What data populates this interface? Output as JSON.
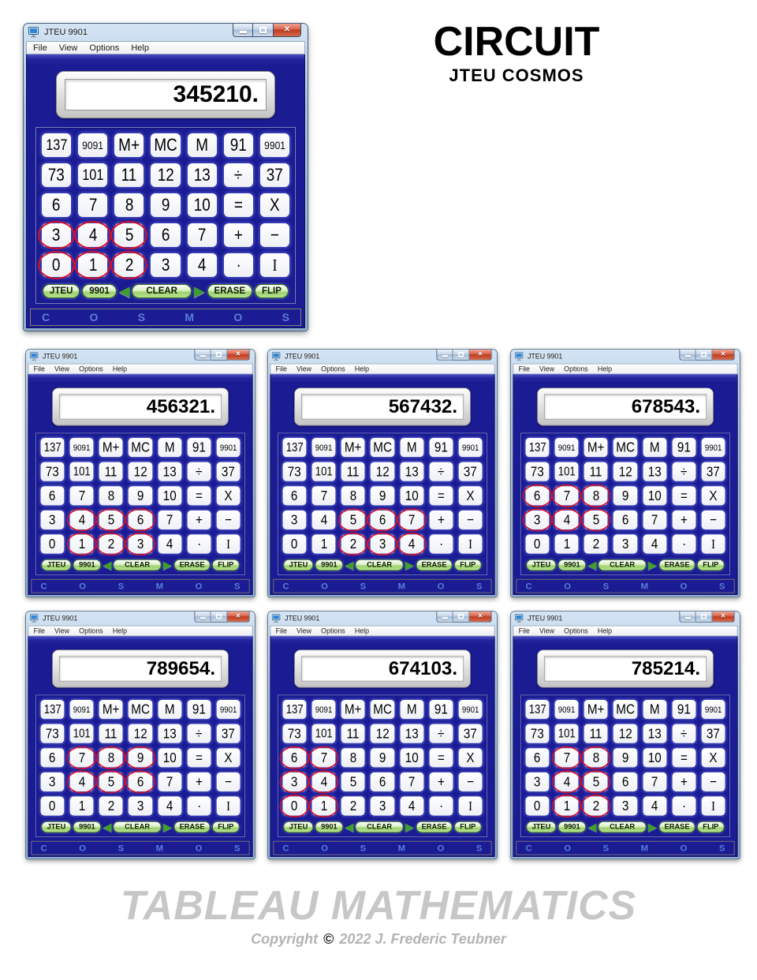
{
  "page": {
    "header": {
      "title": "CIRCUIT",
      "subtitle": "JTEU COSMOS"
    },
    "footer": {
      "title": "TABLEAU MATHEMATICS",
      "copyright_prefix": "Copyright",
      "copyright_symbol": "©",
      "copyright_suffix": "2022  J. Frederic Teubner"
    }
  },
  "calculator_template": {
    "window_title": "JTEU 9901",
    "window_controls": [
      {
        "name": "minimize"
      },
      {
        "name": "maximize"
      },
      {
        "name": "close",
        "glyph": "✕"
      }
    ],
    "menu_items": [
      "File",
      "View",
      "Options",
      "Help"
    ],
    "keypad_rows": [
      [
        "137",
        "9091",
        "M+",
        "MC",
        "M",
        "91",
        "9901"
      ],
      [
        "73",
        "101",
        "11",
        "12",
        "13",
        "÷",
        "37"
      ],
      [
        "6",
        "7",
        "8",
        "9",
        "10",
        "=",
        "X"
      ],
      [
        "3",
        "4",
        "5",
        "6",
        "7",
        "+",
        "−"
      ],
      [
        "0",
        "1",
        "2",
        "3",
        "4",
        "·",
        "I"
      ]
    ],
    "footer_controls": [
      {
        "type": "pill",
        "label": "JTEU"
      },
      {
        "type": "pill",
        "label": "9901"
      },
      {
        "type": "arrow",
        "direction": "left",
        "glyph": "◀"
      },
      {
        "type": "pill",
        "label": "CLEAR"
      },
      {
        "type": "arrow",
        "direction": "right",
        "glyph": "▶"
      },
      {
        "type": "pill",
        "label": "ERASE"
      },
      {
        "type": "pill",
        "label": "FLIP"
      }
    ],
    "bottom_letters": [
      "C",
      "O",
      "S",
      "M",
      "O",
      "S"
    ]
  },
  "calculators": [
    {
      "id": 1,
      "size": "large",
      "display_value": "345210.",
      "circled_keys": [
        [
          3,
          0
        ],
        [
          3,
          1
        ],
        [
          3,
          2
        ],
        [
          4,
          0
        ],
        [
          4,
          1
        ],
        [
          4,
          2
        ]
      ]
    },
    {
      "id": 2,
      "size": "small",
      "display_value": "456321.",
      "circled_keys": [
        [
          3,
          1
        ],
        [
          3,
          2
        ],
        [
          3,
          3
        ],
        [
          4,
          1
        ],
        [
          4,
          2
        ],
        [
          4,
          3
        ]
      ]
    },
    {
      "id": 3,
      "size": "small",
      "display_value": "567432.",
      "circled_keys": [
        [
          3,
          2
        ],
        [
          3,
          3
        ],
        [
          3,
          4
        ],
        [
          4,
          2
        ],
        [
          4,
          3
        ],
        [
          4,
          4
        ]
      ]
    },
    {
      "id": 4,
      "size": "small",
      "display_value": "678543.",
      "circled_keys": [
        [
          2,
          0
        ],
        [
          2,
          1
        ],
        [
          2,
          2
        ],
        [
          3,
          0
        ],
        [
          3,
          1
        ],
        [
          3,
          2
        ]
      ]
    },
    {
      "id": 5,
      "size": "small",
      "display_value": "789654.",
      "circled_keys": [
        [
          2,
          1
        ],
        [
          2,
          2
        ],
        [
          2,
          3
        ],
        [
          3,
          1
        ],
        [
          3,
          2
        ],
        [
          3,
          3
        ]
      ]
    },
    {
      "id": 6,
      "size": "small",
      "display_value": "674103.",
      "circled_keys": [
        [
          2,
          0
        ],
        [
          2,
          1
        ],
        [
          3,
          0
        ],
        [
          3,
          1
        ],
        [
          4,
          0
        ],
        [
          4,
          1
        ]
      ]
    },
    {
      "id": 7,
      "size": "small",
      "display_value": "785214.",
      "circled_keys": [
        [
          2,
          1
        ],
        [
          2,
          2
        ],
        [
          3,
          1
        ],
        [
          3,
          2
        ],
        [
          4,
          1
        ],
        [
          4,
          2
        ]
      ]
    }
  ],
  "colors": {
    "body_navy": "#1b1b94",
    "circle_red": "#d6102a",
    "pill_green": "#9ed06e",
    "cosmos_letter_blue": "#5c7fd6",
    "close_button_red": "#bd3a21",
    "titlebar_glass_blue": "#aac4e0",
    "footer_gray": "#c7c7c7"
  }
}
